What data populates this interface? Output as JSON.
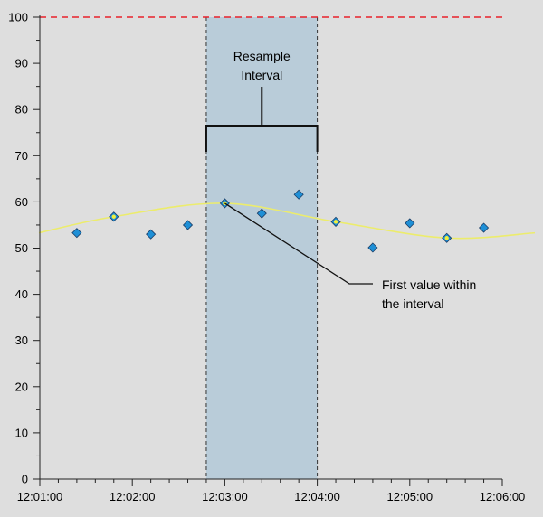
{
  "chart_data": {
    "type": "scatter",
    "title": "",
    "xlabel": "",
    "ylabel": "",
    "xlim": [
      "12:01:00",
      "12:06:00"
    ],
    "ylim": [
      0,
      100
    ],
    "x_ticks": [
      "12:01:00",
      "12:02:00",
      "12:03:00",
      "12:04:00",
      "12:05:00",
      "12:06:00"
    ],
    "y_ticks": [
      0,
      10,
      20,
      30,
      40,
      50,
      60,
      70,
      80,
      90,
      100
    ],
    "grid": false,
    "threshold_line": {
      "y": 100,
      "style": "dashed",
      "color": "#e8202a"
    },
    "resample_interval": {
      "start": "12:02:48",
      "end": "12:04:00",
      "color": "#b9ccd9"
    },
    "series": [
      {
        "type": "scatter",
        "marker": "diamond",
        "color": "#1e8fd6",
        "points": [
          {
            "x": "12:01:24",
            "y": 53.3,
            "first_in_interval": false
          },
          {
            "x": "12:01:48",
            "y": 56.8,
            "first_in_interval": true
          },
          {
            "x": "12:02:12",
            "y": 53.0,
            "first_in_interval": false
          },
          {
            "x": "12:02:36",
            "y": 55.0,
            "first_in_interval": false
          },
          {
            "x": "12:03:00",
            "y": 59.7,
            "first_in_interval": true
          },
          {
            "x": "12:03:24",
            "y": 57.5,
            "first_in_interval": false
          },
          {
            "x": "12:03:48",
            "y": 61.6,
            "first_in_interval": false
          },
          {
            "x": "12:04:12",
            "y": 55.7,
            "first_in_interval": true
          },
          {
            "x": "12:04:36",
            "y": 50.1,
            "first_in_interval": false
          },
          {
            "x": "12:05:00",
            "y": 55.4,
            "first_in_interval": false
          },
          {
            "x": "12:05:24",
            "y": 52.2,
            "first_in_interval": true
          },
          {
            "x": "12:05:48",
            "y": 54.4,
            "first_in_interval": false
          }
        ]
      },
      {
        "type": "line",
        "color": "#ecec6c",
        "points": [
          {
            "x": "12:01:00",
            "y": 53.3
          },
          {
            "x": "12:01:48",
            "y": 56.8
          },
          {
            "x": "12:03:00",
            "y": 59.7
          },
          {
            "x": "12:04:12",
            "y": 55.7
          },
          {
            "x": "12:05:24",
            "y": 52.2
          },
          {
            "x": "12:06:00",
            "y": 53.3
          }
        ]
      }
    ],
    "annotations": {
      "interval_label_line1": "Resample",
      "interval_label_line2": "Interval",
      "callout_line1": "First value within",
      "callout_line2": "the interval",
      "callout_target": {
        "x": "12:03:00",
        "y": 59.7
      }
    }
  }
}
